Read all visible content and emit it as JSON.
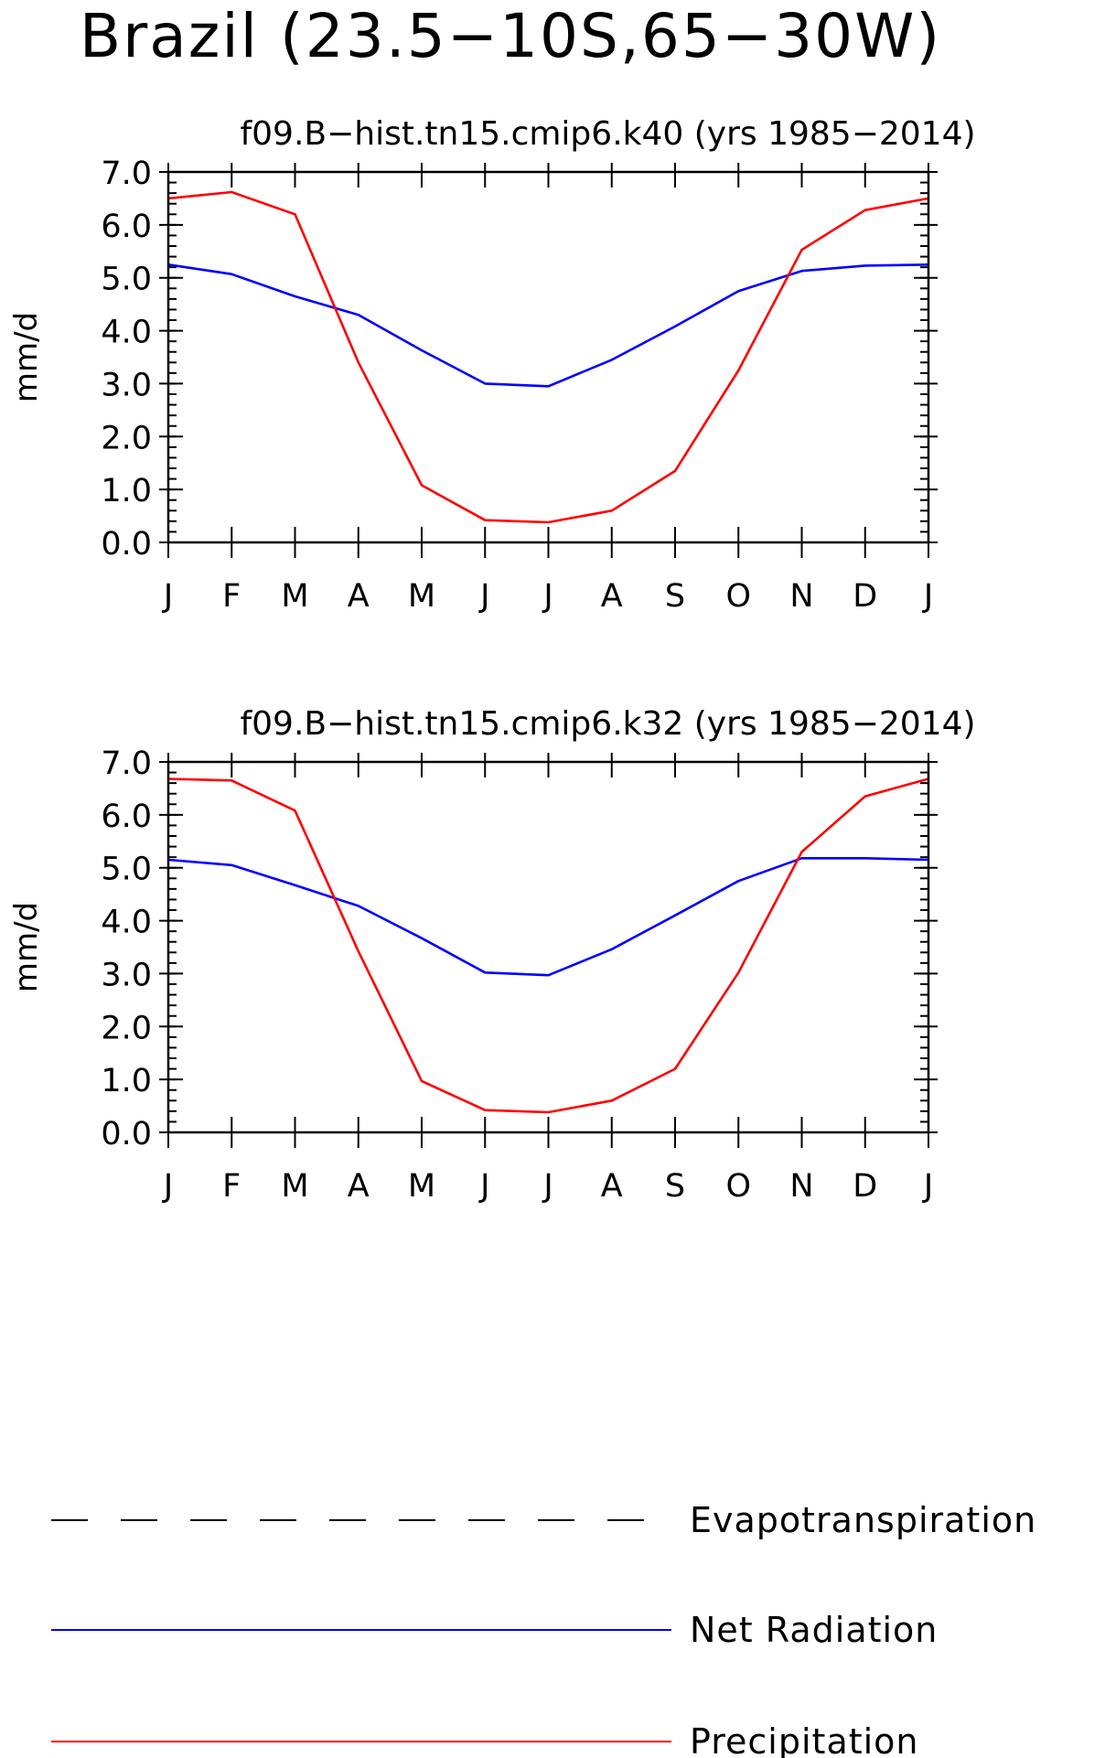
{
  "title": "Brazil (23.5−10S,65−30W)",
  "colors": {
    "net_radiation": "#0000ff",
    "precipitation": "#ff0000",
    "evapotranspiration": "#000000",
    "frame": "#000000"
  },
  "legend": {
    "items": [
      {
        "label": "Evapotranspiration",
        "style": "dashed",
        "color": "#000000"
      },
      {
        "label": "Net Radiation",
        "style": "solid",
        "color": "#0000ff"
      },
      {
        "label": "Precipitation",
        "style": "solid",
        "color": "#ff0000"
      }
    ]
  },
  "chart_data": [
    {
      "type": "line",
      "title": "f09.B−hist.tn15.cmip6.k40 (yrs 1985−2014)",
      "xlabel": "",
      "ylabel": "mm/d",
      "categories": [
        "J",
        "F",
        "M",
        "A",
        "M",
        "J",
        "J",
        "A",
        "S",
        "O",
        "N",
        "D",
        "J"
      ],
      "yticks": [
        "0.0",
        "1.0",
        "2.0",
        "3.0",
        "4.0",
        "5.0",
        "6.0",
        "7.0"
      ],
      "ylim": [
        0,
        7
      ],
      "grid": false,
      "series": [
        {
          "name": "Net Radiation",
          "color": "#0000ff",
          "values": [
            5.25,
            5.07,
            4.65,
            4.3,
            3.63,
            3.0,
            2.95,
            3.45,
            4.08,
            4.75,
            5.13,
            5.23,
            5.25
          ]
        },
        {
          "name": "Precipitation",
          "color": "#ff0000",
          "values": [
            6.5,
            6.62,
            6.2,
            3.4,
            1.08,
            0.42,
            0.38,
            0.6,
            1.35,
            3.25,
            5.53,
            6.28,
            6.5
          ]
        }
      ]
    },
    {
      "type": "line",
      "title": "f09.B−hist.tn15.cmip6.k32 (yrs 1985−2014)",
      "xlabel": "",
      "ylabel": "mm/d",
      "categories": [
        "J",
        "F",
        "M",
        "A",
        "M",
        "J",
        "J",
        "A",
        "S",
        "O",
        "N",
        "D",
        "J"
      ],
      "yticks": [
        "0.0",
        "1.0",
        "2.0",
        "3.0",
        "4.0",
        "5.0",
        "6.0",
        "7.0"
      ],
      "ylim": [
        0,
        7
      ],
      "grid": false,
      "series": [
        {
          "name": "Net Radiation",
          "color": "#0000ff",
          "values": [
            5.15,
            5.05,
            4.67,
            4.28,
            3.67,
            3.02,
            2.97,
            3.46,
            4.1,
            4.75,
            5.18,
            5.18,
            5.15
          ]
        },
        {
          "name": "Precipitation",
          "color": "#ff0000",
          "values": [
            6.68,
            6.65,
            6.08,
            3.42,
            0.97,
            0.42,
            0.38,
            0.6,
            1.2,
            3.02,
            5.3,
            6.35,
            6.68
          ]
        }
      ]
    }
  ]
}
